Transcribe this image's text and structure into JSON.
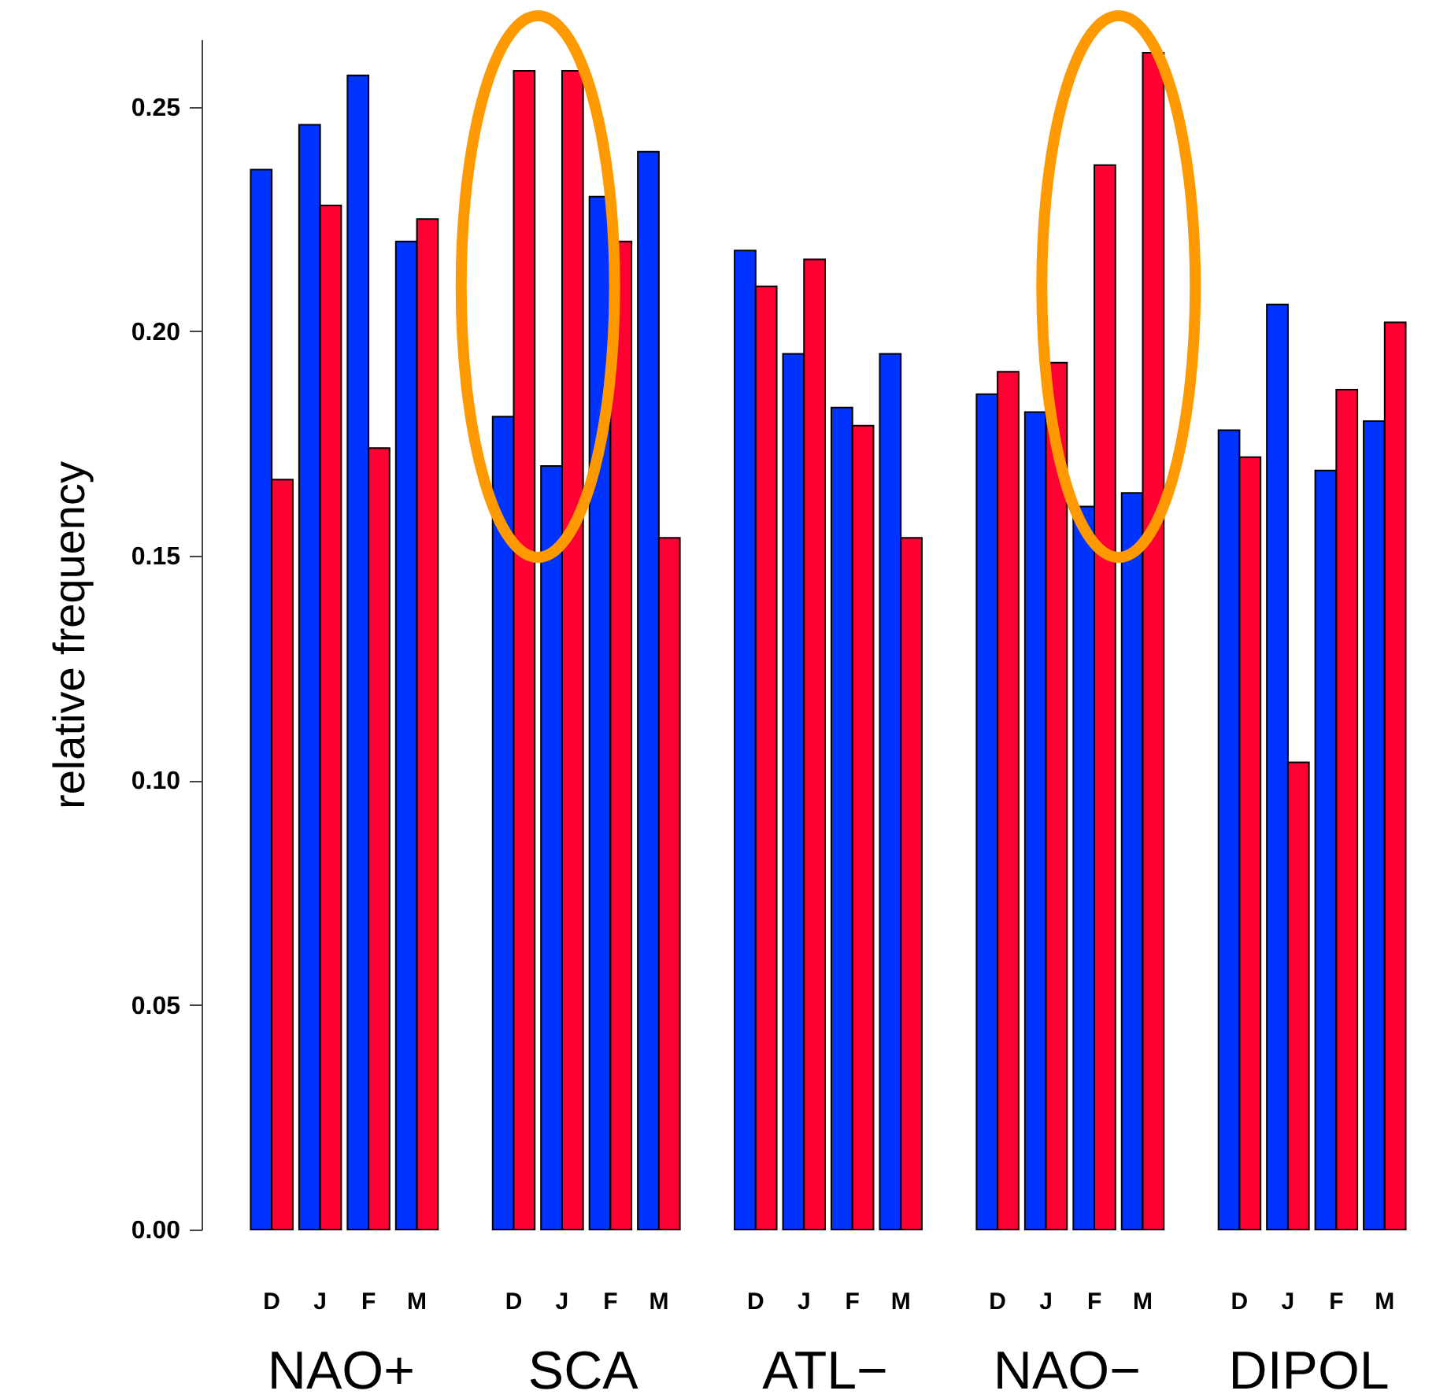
{
  "chart_data": {
    "type": "bar",
    "ylabel": "relative frequency",
    "categories": [
      "D",
      "J",
      "F",
      "M",
      "D",
      "J",
      "F",
      "M",
      "D",
      "J",
      "F",
      "M",
      "D",
      "J",
      "F",
      "M",
      "D",
      "J",
      "F",
      "M"
    ],
    "series": [
      {
        "color": "#0033ff",
        "values": [
          0.236,
          0.246,
          0.257,
          0.22,
          0.181,
          0.17,
          0.23,
          0.24,
          0.218,
          0.195,
          0.183,
          0.195,
          0.186,
          0.182,
          0.161,
          0.164,
          0.178,
          0.206,
          0.169,
          0.18
        ]
      },
      {
        "color": "#ff0033",
        "values": [
          0.167,
          0.228,
          0.174,
          0.225,
          0.258,
          0.258,
          0.22,
          0.154,
          0.21,
          0.216,
          0.179,
          0.154,
          0.191,
          0.193,
          0.237,
          0.262,
          0.172,
          0.104,
          0.187,
          0.202
        ]
      }
    ],
    "ylim": [
      0,
      0.265
    ],
    "yticks": [
      {
        "value": 0,
        "label": "0.00"
      },
      0.05,
      {
        "value": 0.1,
        "label": "0.10"
      },
      0.15,
      {
        "value": 0.2,
        "label": "0.20"
      },
      0.25
    ],
    "annotations": [
      "NAO+",
      "SCA",
      "ATL−",
      "NAO−",
      "DIPOL"
    ],
    "grid": false,
    "legend": false
  }
}
